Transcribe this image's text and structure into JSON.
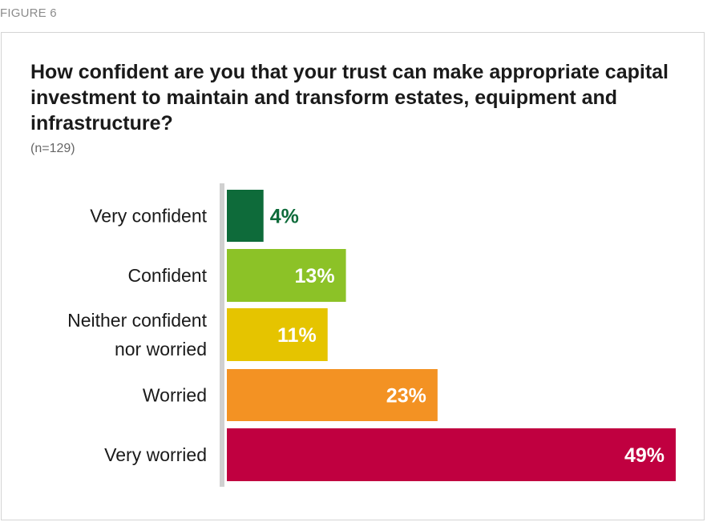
{
  "figure_label": "FIGURE 6",
  "chart_data": {
    "type": "bar",
    "orientation": "horizontal",
    "title": "How confident are you that your trust can make appropriate capital investment to maintain and transform estates, equipment and infrastructure?",
    "subtitle": "(n=129)",
    "categories": [
      [
        "Very confident"
      ],
      [
        "Confident"
      ],
      [
        "Neither confident",
        "nor worried"
      ],
      [
        "Worried"
      ],
      [
        "Very worried"
      ]
    ],
    "values": [
      4,
      13,
      11,
      23,
      49
    ],
    "value_labels": [
      "4%",
      "13%",
      "11%",
      "23%",
      "49%"
    ],
    "colors": [
      "#0e6b3a",
      "#8cc227",
      "#e5c400",
      "#f39223",
      "#c00040"
    ],
    "label_inside": [
      false,
      true,
      true,
      true,
      true
    ],
    "unit": "%",
    "xlim": [
      0,
      49
    ],
    "grid": false,
    "legend": "none"
  }
}
